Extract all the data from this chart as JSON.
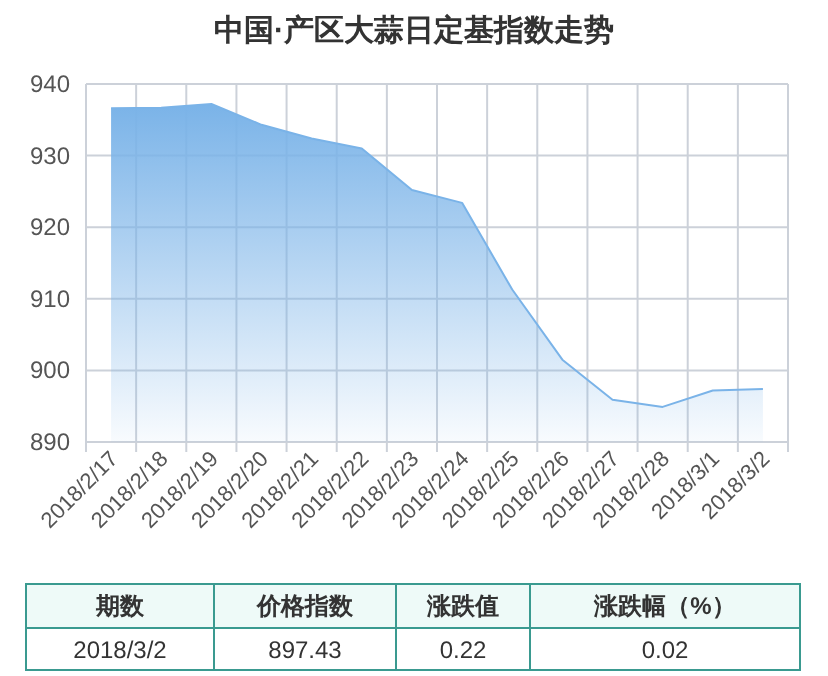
{
  "chart_data": {
    "type": "area",
    "title": "中国·产区大蒜日定基指数走势",
    "categories": [
      "2018/2/17",
      "2018/2/18",
      "2018/2/19",
      "2018/2/20",
      "2018/2/21",
      "2018/2/22",
      "2018/2/23",
      "2018/2/24",
      "2018/2/25",
      "2018/2/26",
      "2018/2/27",
      "2018/2/28",
      "2018/3/1",
      "2018/3/2"
    ],
    "values": [
      936.6,
      936.7,
      937.2,
      934.3,
      932.4,
      931.0,
      925.2,
      923.4,
      911.3,
      901.5,
      895.9,
      894.9,
      897.2,
      897.4
    ],
    "color": "#7ab3e8",
    "ylim": [
      890,
      940
    ],
    "yticks": [
      890,
      900,
      910,
      920,
      930,
      940
    ],
    "grid": true,
    "annotations": [
      "期数",
      "价格指数",
      "涨跌值",
      "涨跌幅（%）",
      "2018/3/2",
      "897.43",
      "0.22",
      "0.02"
    ]
  }
}
